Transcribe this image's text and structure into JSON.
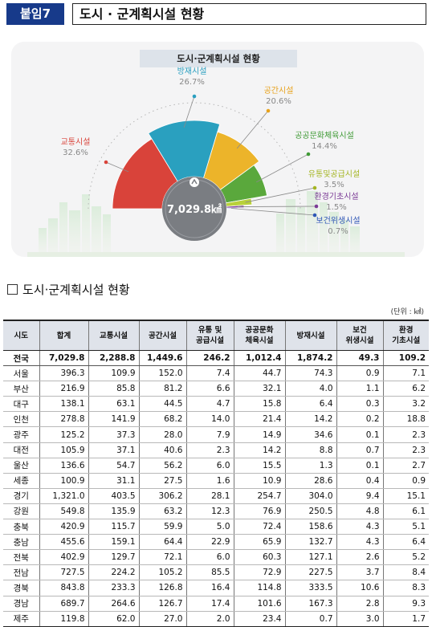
{
  "header": {
    "badge": "붙임7",
    "title": "도시 · 군계획시설 현황"
  },
  "figure": {
    "banner": "도시·군계획시설 현황",
    "center_label": "7,029.8㎢"
  },
  "chart_data": [
    {
      "type": "pie",
      "title": "도시·군계획시설 현황",
      "center_value": "7,029.8㎢",
      "slices": [
        {
          "name": "교통시설",
          "percent_label": "32.6%",
          "value": 32.6,
          "color": "#d9433a"
        },
        {
          "name": "방재시설",
          "percent_label": "26.7%",
          "value": 26.7,
          "color": "#2aa0bf"
        },
        {
          "name": "공간시설",
          "percent_label": "20.6%",
          "value": 20.6,
          "color": "#ecb42a"
        },
        {
          "name": "공공문화체육시설",
          "percent_label": "14.4%",
          "value": 14.4,
          "color": "#5aa83c"
        },
        {
          "name": "유통및공급시설",
          "percent_label": "3.5%",
          "value": 3.5,
          "color": "#b9d13a"
        },
        {
          "name": "환경기초시설",
          "percent_label": "1.5%",
          "value": 1.5,
          "color": "#7b3b96"
        },
        {
          "name": "보건위생시설",
          "percent_label": "0.7%",
          "value": 0.7,
          "color": "#2f56b6"
        }
      ],
      "label_colors": {
        "교통시설": "#d9433a",
        "방재시설": "#2a9fc0",
        "공간시설": "#e8a21b",
        "공공문화체육시설": "#3f9a35",
        "유통및공급시설": "#a4b521",
        "환경기초시설": "#7b3b96",
        "보건위생시설": "#2f56b6"
      }
    },
    {
      "type": "table",
      "title": "도시·군계획시설 현황",
      "unit": "(단위 : ㎢)",
      "columns": [
        "시도",
        "합계",
        "교통시설",
        "공간시설",
        "유통 및\n공급시설",
        "공공문화\n체육시설",
        "방재시설",
        "보건\n위생시설",
        "환경\n기초시설"
      ],
      "rows": [
        [
          "전국",
          "7,029.8",
          "2,288.8",
          "1,449.6",
          "246.2",
          "1,012.4",
          "1,874.2",
          "49.3",
          "109.2"
        ],
        [
          "서울",
          "396.3",
          "109.9",
          "152.0",
          "7.4",
          "44.7",
          "74.3",
          "0.9",
          "7.1"
        ],
        [
          "부산",
          "216.9",
          "85.8",
          "81.2",
          "6.6",
          "32.1",
          "4.0",
          "1.1",
          "6.2"
        ],
        [
          "대구",
          "138.1",
          "63.1",
          "44.5",
          "4.7",
          "15.8",
          "6.4",
          "0.3",
          "3.2"
        ],
        [
          "인천",
          "278.8",
          "141.9",
          "68.2",
          "14.0",
          "21.4",
          "14.2",
          "0.2",
          "18.8"
        ],
        [
          "광주",
          "125.2",
          "37.3",
          "28.0",
          "7.9",
          "14.9",
          "34.6",
          "0.1",
          "2.3"
        ],
        [
          "대전",
          "105.9",
          "37.1",
          "40.6",
          "2.3",
          "14.2",
          "8.8",
          "0.7",
          "2.3"
        ],
        [
          "울산",
          "136.6",
          "54.7",
          "56.2",
          "6.0",
          "15.5",
          "1.3",
          "0.1",
          "2.7"
        ],
        [
          "세종",
          "100.9",
          "31.1",
          "27.5",
          "1.6",
          "10.9",
          "28.6",
          "0.4",
          "0.9"
        ],
        [
          "경기",
          "1,321.0",
          "403.5",
          "306.2",
          "28.1",
          "254.7",
          "304.0",
          "9.4",
          "15.1"
        ],
        [
          "강원",
          "549.8",
          "135.9",
          "63.2",
          "12.3",
          "76.9",
          "250.5",
          "4.8",
          "6.1"
        ],
        [
          "충북",
          "420.9",
          "115.7",
          "59.9",
          "5.0",
          "72.4",
          "158.6",
          "4.3",
          "5.1"
        ],
        [
          "충남",
          "455.6",
          "159.1",
          "64.4",
          "22.9",
          "65.9",
          "132.7",
          "4.3",
          "6.4"
        ],
        [
          "전북",
          "402.9",
          "129.7",
          "72.1",
          "6.0",
          "60.3",
          "127.1",
          "2.6",
          "5.2"
        ],
        [
          "전남",
          "727.5",
          "224.2",
          "105.2",
          "85.5",
          "72.9",
          "227.5",
          "3.7",
          "8.4"
        ],
        [
          "경북",
          "843.8",
          "233.3",
          "126.8",
          "16.4",
          "114.8",
          "333.5",
          "10.6",
          "8.3"
        ],
        [
          "경남",
          "689.7",
          "264.6",
          "126.7",
          "17.4",
          "101.6",
          "167.3",
          "2.8",
          "9.3"
        ],
        [
          "제주",
          "119.8",
          "62.0",
          "27.0",
          "2.0",
          "23.4",
          "0.7",
          "3.0",
          "1.7"
        ]
      ]
    }
  ],
  "table": {
    "heading": "도시·군계획시설 현황",
    "unit": "(단위 : ㎢)"
  }
}
